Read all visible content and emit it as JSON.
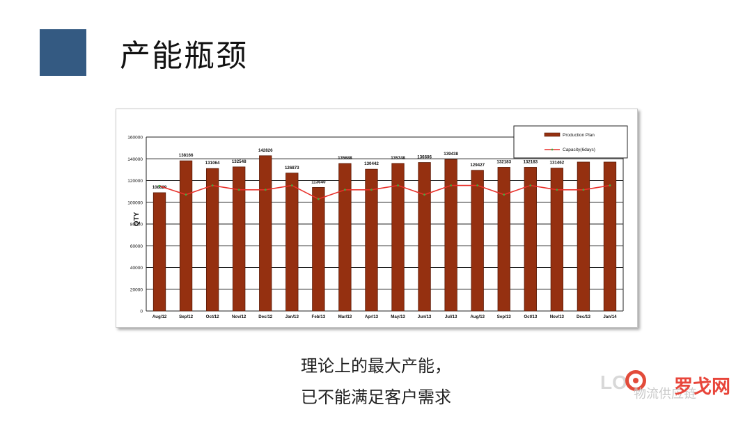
{
  "slide": {
    "title": "产能瓶颈",
    "caption_line1": "理论上的最大产能，",
    "caption_line2": "已不能满足客户需求",
    "accent_color": "#345a82"
  },
  "watermark": {
    "logo_text": "LO",
    "brand_text": "罗戈网",
    "sub_text": "物流供应链"
  },
  "chart_data": {
    "type": "bar",
    "title": "",
    "xlabel": "",
    "ylabel": "QTY",
    "ylim": [
      0,
      160000
    ],
    "yticks": [
      0,
      20000,
      40000,
      60000,
      80000,
      100000,
      120000,
      140000,
      160000
    ],
    "grid": true,
    "legend_position": "top-right",
    "categories": [
      "Aug/12",
      "Sep/12",
      "Oct/12",
      "Nov/12",
      "Dec/12",
      "Jan/13",
      "Feb/13",
      "Mar/13",
      "Apr/13",
      "May/13",
      "Jun/13",
      "Jul/13",
      "Aug/13",
      "Sep/13",
      "Oct/13",
      "Nov/13",
      "Dec/13",
      "Jan/14"
    ],
    "series": [
      {
        "name": "Production Plan",
        "type": "bar",
        "color": "#953010",
        "values": [
          108829,
          138166,
          131064,
          132548,
          142826,
          126873,
          113640,
          135688,
          130442,
          135748,
          136606,
          139438,
          129427,
          132183,
          132183,
          131462,
          137000,
          137000
        ],
        "labels": [
          "108829",
          "138166",
          "131064",
          "132548",
          "142826",
          "126873",
          "113640",
          "135688",
          "130442",
          "135748",
          "136606",
          "139438",
          "129427",
          "132183",
          "132183",
          "131462",
          "",
          ""
        ]
      },
      {
        "name": "Capacity(6days)",
        "type": "line",
        "color": "#e8302a",
        "marker_color": "#3fae3f",
        "values": [
          115000,
          107000,
          115500,
          111500,
          111500,
          115500,
          103000,
          111500,
          111500,
          115500,
          107000,
          115500,
          115500,
          107000,
          115500,
          111500,
          111500,
          115500
        ]
      }
    ]
  }
}
